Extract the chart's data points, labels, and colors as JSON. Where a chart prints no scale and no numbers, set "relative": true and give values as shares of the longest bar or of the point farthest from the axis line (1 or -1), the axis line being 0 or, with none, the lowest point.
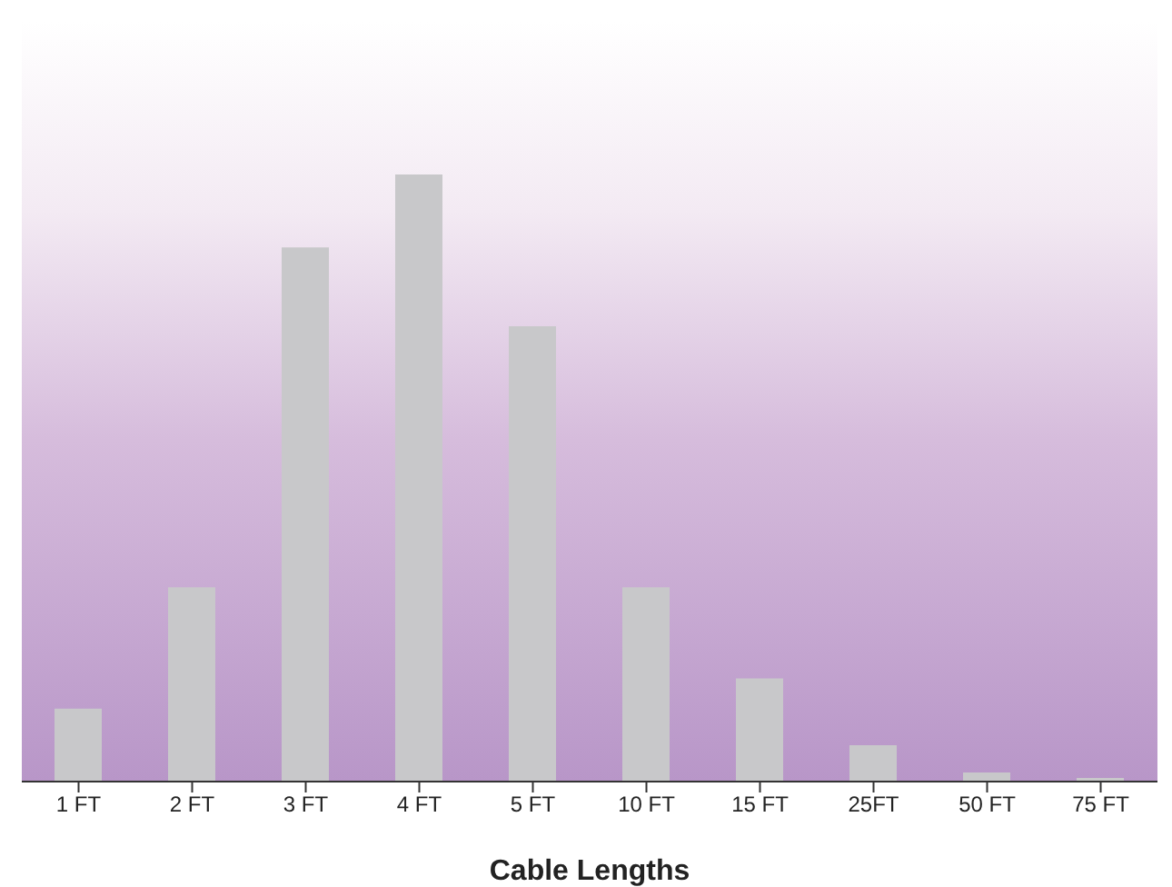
{
  "chart_data": {
    "type": "bar",
    "relative": true,
    "xlabel": "Cable Lengths",
    "categories": [
      "1 FT",
      "2 FT",
      "3 FT",
      "4 FT",
      "5 FT",
      "10 FT",
      "15 FT",
      "25FT",
      "50 FT",
      "75 FT"
    ],
    "values": [
      0.12,
      0.32,
      0.88,
      1,
      0.75,
      0.32,
      0.17,
      0.06,
      0.015,
      0.006
    ],
    "color": "#c8c8ca",
    "grid": false,
    "legend": false
  }
}
